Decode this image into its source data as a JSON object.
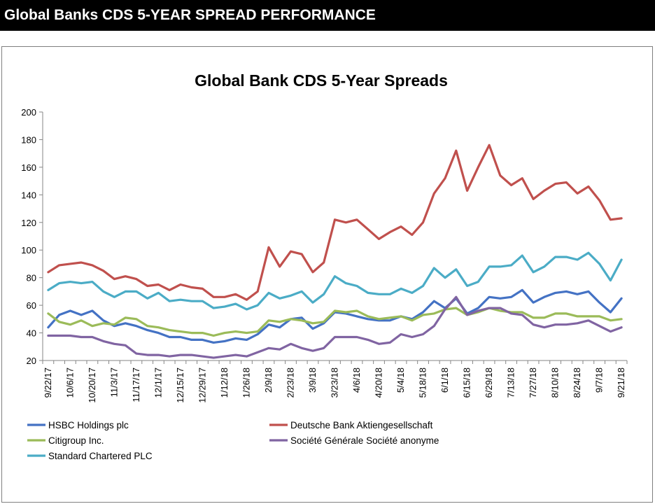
{
  "header": {
    "title": "Global Banks CDS 5-YEAR SPREAD PERFORMANCE"
  },
  "chart_data": {
    "type": "line",
    "title": "Global Bank CDS 5-Year Spreads",
    "xlabel": "",
    "ylabel": "",
    "ylim": [
      20,
      200
    ],
    "yticks": [
      20,
      40,
      60,
      80,
      100,
      120,
      140,
      160,
      180,
      200
    ],
    "grid": false,
    "legend_position": "bottom",
    "x_tick_labels": [
      "9/22/17",
      "10/6/17",
      "10/20/17",
      "11/3/17",
      "11/17/17",
      "12/1/17",
      "12/15/17",
      "12/29/17",
      "1/12/18",
      "1/26/18",
      "2/9/18",
      "2/23/18",
      "3/9/18",
      "3/23/18",
      "4/6/18",
      "4/20/18",
      "5/4/18",
      "5/18/18",
      "6/1/18",
      "6/15/18",
      "6/29/18",
      "7/13/18",
      "7/27/18",
      "8/10/18",
      "8/24/18",
      "9/7/18",
      "9/21/18"
    ],
    "x": [
      "9/22/17",
      "9/29/17",
      "10/6/17",
      "10/13/17",
      "10/20/17",
      "10/27/17",
      "11/3/17",
      "11/10/17",
      "11/17/17",
      "11/24/17",
      "12/1/17",
      "12/8/17",
      "12/15/17",
      "12/22/17",
      "12/29/17",
      "1/5/18",
      "1/12/18",
      "1/19/18",
      "1/26/18",
      "2/2/18",
      "2/9/18",
      "2/16/18",
      "2/23/18",
      "3/2/18",
      "3/9/18",
      "3/16/18",
      "3/23/18",
      "3/30/18",
      "4/6/18",
      "4/13/18",
      "4/20/18",
      "4/27/18",
      "5/4/18",
      "5/11/18",
      "5/18/18",
      "5/25/18",
      "6/1/18",
      "6/8/18",
      "6/15/18",
      "6/22/18",
      "6/29/18",
      "7/6/18",
      "7/13/18",
      "7/20/18",
      "7/27/18",
      "8/3/18",
      "8/10/18",
      "8/17/18",
      "8/24/18",
      "8/31/18",
      "9/7/18",
      "9/14/18",
      "9/21/18"
    ],
    "series": [
      {
        "name": "HSBC Holdings plc",
        "color": "#4472c4",
        "values": [
          44,
          53,
          56,
          53,
          56,
          49,
          45,
          47,
          45,
          42,
          40,
          37,
          37,
          35,
          35,
          33,
          34,
          36,
          35,
          39,
          46,
          44,
          50,
          51,
          43,
          47,
          55,
          54,
          52,
          50,
          49,
          49,
          52,
          50,
          55,
          63,
          58,
          65,
          54,
          58,
          66,
          65,
          66,
          71,
          62,
          66,
          69,
          70,
          68,
          70,
          62,
          55,
          65
        ]
      },
      {
        "name": "Deutsche Bank Aktiengesellschaft",
        "color": "#c0504d",
        "values": [
          84,
          89,
          90,
          91,
          89,
          85,
          79,
          81,
          79,
          74,
          75,
          71,
          75,
          73,
          72,
          66,
          66,
          68,
          64,
          70,
          102,
          88,
          99,
          97,
          84,
          91,
          122,
          120,
          122,
          115,
          108,
          113,
          117,
          111,
          120,
          141,
          152,
          172,
          143,
          160,
          176,
          154,
          147,
          152,
          137,
          143,
          148,
          149,
          141,
          146,
          136,
          122,
          123
        ]
      },
      {
        "name": "Citigroup Inc.",
        "color": "#9bbb59",
        "values": [
          54,
          48,
          46,
          49,
          45,
          47,
          46,
          51,
          50,
          45,
          44,
          42,
          41,
          40,
          40,
          38,
          40,
          41,
          40,
          41,
          49,
          48,
          50,
          49,
          47,
          48,
          56,
          55,
          56,
          52,
          50,
          51,
          52,
          49,
          53,
          54,
          57,
          58,
          53,
          55,
          58,
          56,
          55,
          55,
          51,
          51,
          54,
          54,
          52,
          52,
          52,
          49,
          50
        ]
      },
      {
        "name": "Société Générale Société anonyme",
        "color": "#8064a2",
        "values": [
          38,
          38,
          38,
          37,
          37,
          34,
          32,
          31,
          25,
          24,
          24,
          23,
          24,
          24,
          23,
          22,
          23,
          24,
          23,
          26,
          29,
          28,
          32,
          29,
          27,
          29,
          37,
          37,
          37,
          35,
          32,
          33,
          39,
          37,
          39,
          45,
          57,
          66,
          53,
          56,
          58,
          58,
          54,
          53,
          46,
          44,
          46,
          46,
          47,
          49,
          45,
          41,
          44
        ]
      },
      {
        "name": "Standard Chartered PLC",
        "color": "#4bacc6",
        "values": [
          71,
          76,
          77,
          76,
          77,
          70,
          66,
          70,
          70,
          65,
          69,
          63,
          64,
          63,
          63,
          58,
          59,
          61,
          57,
          60,
          69,
          65,
          67,
          70,
          62,
          68,
          81,
          76,
          74,
          69,
          68,
          68,
          72,
          69,
          74,
          87,
          80,
          86,
          74,
          77,
          88,
          88,
          89,
          96,
          84,
          88,
          95,
          95,
          93,
          98,
          90,
          78,
          93
        ]
      }
    ]
  }
}
